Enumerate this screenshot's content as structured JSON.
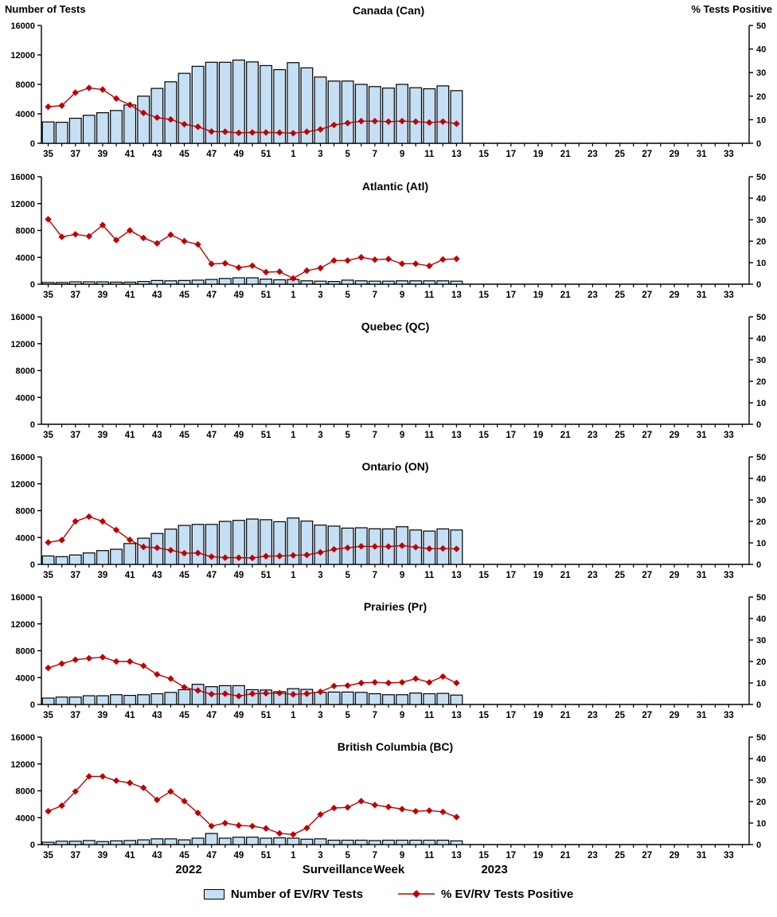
{
  "figure": {
    "left_axis_title": "Number of Tests",
    "right_axis_title": "% Tests Positive",
    "xaxis_title": "Surveillance Week",
    "year_left": "2022",
    "year_right": "2023",
    "legend": {
      "bar_label": "Number of EV/RV Tests",
      "line_label": "% EV/RV Tests Positive"
    }
  },
  "chart_data": {
    "type": "bar",
    "subtype": "combo bar+line, 6 stacked regional panels",
    "bar_series_name": "Number of EV/RV Tests",
    "line_series_name": "% EV/RV Tests Positive",
    "x_axis": {
      "label": "Surveillance Week",
      "weeks": [
        35,
        36,
        37,
        38,
        39,
        40,
        41,
        42,
        43,
        44,
        45,
        46,
        47,
        48,
        49,
        50,
        51,
        52,
        1,
        2,
        3,
        4,
        5,
        6,
        7,
        8,
        9,
        10,
        11,
        12,
        13,
        14,
        15,
        16,
        17,
        18,
        19,
        20,
        21,
        22,
        23,
        24,
        25,
        26,
        27,
        28,
        29,
        30,
        31,
        32,
        33,
        34
      ],
      "labeled_ticks": [
        35,
        37,
        39,
        41,
        43,
        45,
        47,
        49,
        51,
        1,
        3,
        5,
        7,
        9,
        11,
        13,
        15,
        17,
        19,
        21,
        23,
        25,
        27,
        29,
        31,
        33
      ],
      "year_2022_weeks": "35-52",
      "year_2023_weeks": "1-34",
      "weeks_with_data": [
        35,
        36,
        37,
        38,
        39,
        40,
        41,
        42,
        43,
        44,
        45,
        46,
        47,
        48,
        49,
        50,
        51,
        52,
        1,
        2,
        3,
        4,
        5,
        6,
        7,
        8,
        9,
        10,
        11,
        12,
        13
      ]
    },
    "y_axis_left": {
      "title": "Number of Tests",
      "min": 0,
      "max": 16000,
      "ticks": [
        0,
        4000,
        8000,
        12000,
        16000
      ]
    },
    "y_axis_right": {
      "title": "% Tests Positive",
      "min": 0,
      "max": 50,
      "ticks": [
        0,
        10,
        20,
        30,
        40,
        50
      ]
    },
    "colors": {
      "bar_fill": "#C5E0F5",
      "bar_stroke": "#000000",
      "line": "#C00000"
    },
    "panels": [
      {
        "id": "can",
        "title": "Canada (Can)",
        "tests": [
          2900,
          2850,
          3400,
          3800,
          4150,
          4450,
          5200,
          6400,
          7450,
          8350,
          9500,
          10450,
          11000,
          11000,
          11300,
          11050,
          10550,
          10000,
          10950,
          10250,
          9000,
          8450,
          8450,
          8000,
          7700,
          7500,
          8000,
          7550,
          7400,
          7800,
          7150
        ],
        "pct_positive": [
          15.5,
          16,
          21.5,
          23.5,
          22.8,
          19,
          16.3,
          12.9,
          10.9,
          10.1,
          8.1,
          7,
          5,
          4.9,
          4.4,
          4.6,
          4.6,
          4.5,
          4.3,
          4.9,
          5.9,
          7.8,
          8.6,
          9.4,
          9.4,
          9.2,
          9.4,
          9.2,
          8.8,
          9.2,
          8.3
        ]
      },
      {
        "id": "atl",
        "title": "Atlantic (Atl)",
        "tests": [
          250,
          250,
          350,
          350,
          350,
          300,
          300,
          400,
          550,
          500,
          550,
          600,
          700,
          850,
          950,
          950,
          750,
          650,
          700,
          500,
          450,
          400,
          600,
          500,
          450,
          450,
          500,
          500,
          500,
          500,
          450
        ],
        "pct_positive": [
          30.2,
          22,
          23.2,
          22.3,
          27.5,
          20.5,
          25,
          21.5,
          19,
          23,
          20,
          18.5,
          9.4,
          9.7,
          7.7,
          8.6,
          5.6,
          5.8,
          2.7,
          6.3,
          7.5,
          11,
          11,
          12.5,
          11.4,
          11.7,
          9.5,
          9.5,
          8.5,
          11.5,
          11.8
        ]
      },
      {
        "id": "qc",
        "title": "Quebec (QC)",
        "tests": [],
        "pct_positive": []
      },
      {
        "id": "on",
        "title": "Ontario (ON)",
        "tests": [
          1250,
          1150,
          1400,
          1700,
          2050,
          2250,
          3100,
          3900,
          4600,
          5250,
          5800,
          5950,
          5950,
          6400,
          6550,
          6750,
          6650,
          6350,
          6900,
          6450,
          5850,
          5700,
          5400,
          5450,
          5300,
          5280,
          5600,
          5120,
          4960,
          5280,
          5120
        ],
        "pct_positive": [
          10.2,
          11.3,
          20,
          22.2,
          20,
          16,
          11.4,
          8.1,
          7.7,
          6.6,
          5.2,
          5.3,
          3.6,
          3.1,
          3.1,
          3,
          3.8,
          3.9,
          4.2,
          4.4,
          5.6,
          7,
          7.7,
          8.4,
          8.3,
          8.3,
          8.7,
          8,
          7.3,
          7.4,
          7.2
        ]
      },
      {
        "id": "pr",
        "title": "Prairies (Pr)",
        "tests": [
          950,
          1100,
          1100,
          1300,
          1300,
          1450,
          1350,
          1450,
          1600,
          1800,
          2200,
          3000,
          2650,
          2800,
          2800,
          2200,
          2150,
          1900,
          2350,
          2250,
          1800,
          1850,
          1850,
          1800,
          1600,
          1450,
          1450,
          1700,
          1600,
          1650,
          1400
        ],
        "pct_positive": [
          17,
          19,
          20.8,
          21.5,
          22,
          20,
          20,
          18,
          14,
          12,
          8,
          6.5,
          4.8,
          5,
          3.9,
          5,
          5.2,
          5.3,
          4.7,
          5,
          5.9,
          8.6,
          8.8,
          10,
          10.3,
          10,
          10.3,
          12,
          10.3,
          13,
          10
        ]
      },
      {
        "id": "bc",
        "title": "British Columbia (BC)",
        "tests": [
          350,
          500,
          500,
          600,
          450,
          550,
          600,
          700,
          850,
          850,
          700,
          950,
          1650,
          950,
          1100,
          1100,
          950,
          1000,
          950,
          800,
          850,
          650,
          650,
          650,
          600,
          650,
          650,
          650,
          650,
          650,
          550
        ],
        "pct_positive": [
          15.5,
          18.1,
          24.7,
          31.7,
          31.7,
          29.7,
          28.7,
          26.4,
          20.8,
          24.7,
          20.2,
          14.7,
          8.6,
          10,
          8.9,
          8.6,
          7.5,
          5.2,
          4.7,
          7.7,
          14,
          17,
          17.3,
          20.2,
          18.4,
          17.5,
          16.5,
          15.5,
          15.8,
          15.2,
          12.8
        ]
      }
    ]
  }
}
